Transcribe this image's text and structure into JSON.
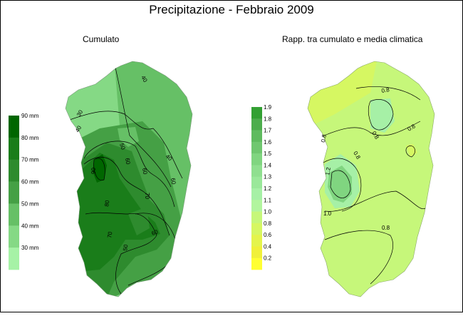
{
  "title": "Precipitazione - Febbraio 2009",
  "maps": [
    {
      "subtitle": "Cumulato",
      "legend": {
        "colors": [
          "#006600",
          "#1a7d1a",
          "#2e8b2e",
          "#45a045",
          "#66c066",
          "#85d985",
          "#a6f2a6"
        ],
        "labels": [
          "90 mm",
          "80 mm",
          "70 mm",
          "60 mm",
          "50 mm",
          "40 mm",
          "30 mm"
        ]
      },
      "contour_labels": [
        "40",
        "30",
        "40",
        "50",
        "60",
        "60",
        "60",
        "90",
        "70",
        "40",
        "60",
        "70",
        "50",
        "80"
      ]
    },
    {
      "subtitle": "Rapp. tra cumulato e media climatica",
      "legend": {
        "colors": [
          "#33a033",
          "#4dad4d",
          "#5fbb5f",
          "#70c770",
          "#80d580",
          "#8fdf8f",
          "#9ae89a",
          "#a6f0a6",
          "#b2f59e",
          "#c6f77a",
          "#d6f762",
          "#e4f44c",
          "#f0f03a",
          "#ffff33"
        ],
        "labels": [
          "1.9",
          "1.8",
          "1.7",
          "1.6",
          "1.5",
          "1.4",
          "1.3",
          "1.2",
          "1.1",
          "1.0",
          "0.8",
          "0.6",
          "0.4",
          "0.2"
        ]
      },
      "contour_labels": [
        "0.8",
        "0.8",
        "0.8",
        "0.8",
        "0.8",
        "1.2",
        "1.0",
        "0.8"
      ]
    }
  ]
}
